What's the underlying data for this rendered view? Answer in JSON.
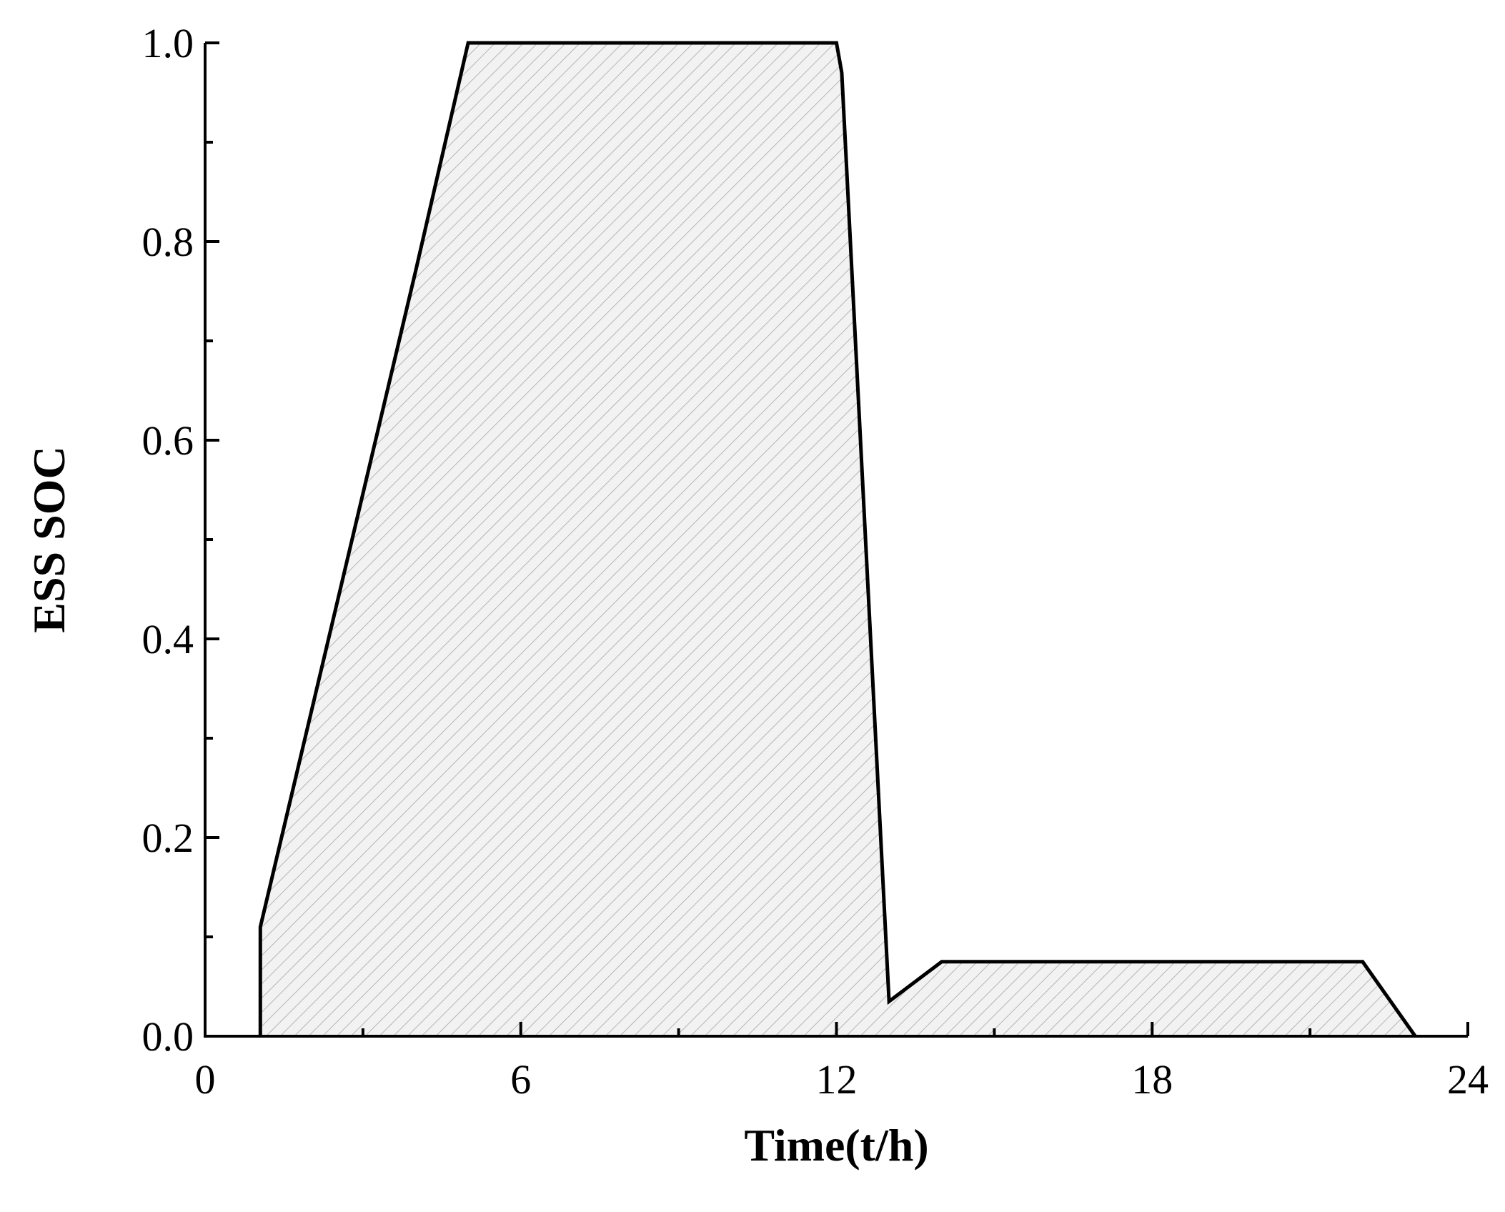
{
  "chart_data": {
    "type": "area",
    "title": "",
    "xlabel": "Time(t/h)",
    "ylabel": "ESS SOC",
    "xlim": [
      0,
      24
    ],
    "ylim": [
      0,
      1.0
    ],
    "x_ticks": [
      0,
      6,
      12,
      18,
      24
    ],
    "x_tick_labels": [
      "0",
      "6",
      "12",
      "18",
      "24"
    ],
    "x_minor_ticks": [
      3,
      9,
      15,
      21
    ],
    "y_ticks": [
      0.0,
      0.2,
      0.4,
      0.6,
      0.8,
      1.0
    ],
    "y_tick_labels": [
      "0.0",
      "0.2",
      "0.4",
      "0.6",
      "0.8",
      "1.0"
    ],
    "y_minor_ticks": [
      0.1,
      0.3,
      0.5,
      0.7,
      0.9
    ],
    "grid": false,
    "legend": "none",
    "fill_pattern": "diagonal-hatch",
    "colors": {
      "line": "#000000",
      "fill": "#f2f2f2",
      "hatch": "#b5b5b5"
    },
    "series": [
      {
        "x": [
          1.05,
          1.05,
          4.0,
          5.0,
          12.0,
          12.1,
          13.0,
          14.0,
          22.0,
          23.0
        ],
        "y": [
          0.0,
          0.11,
          0.77,
          1.0,
          1.0,
          0.97,
          0.035,
          0.075,
          0.075,
          0.0
        ]
      }
    ]
  }
}
